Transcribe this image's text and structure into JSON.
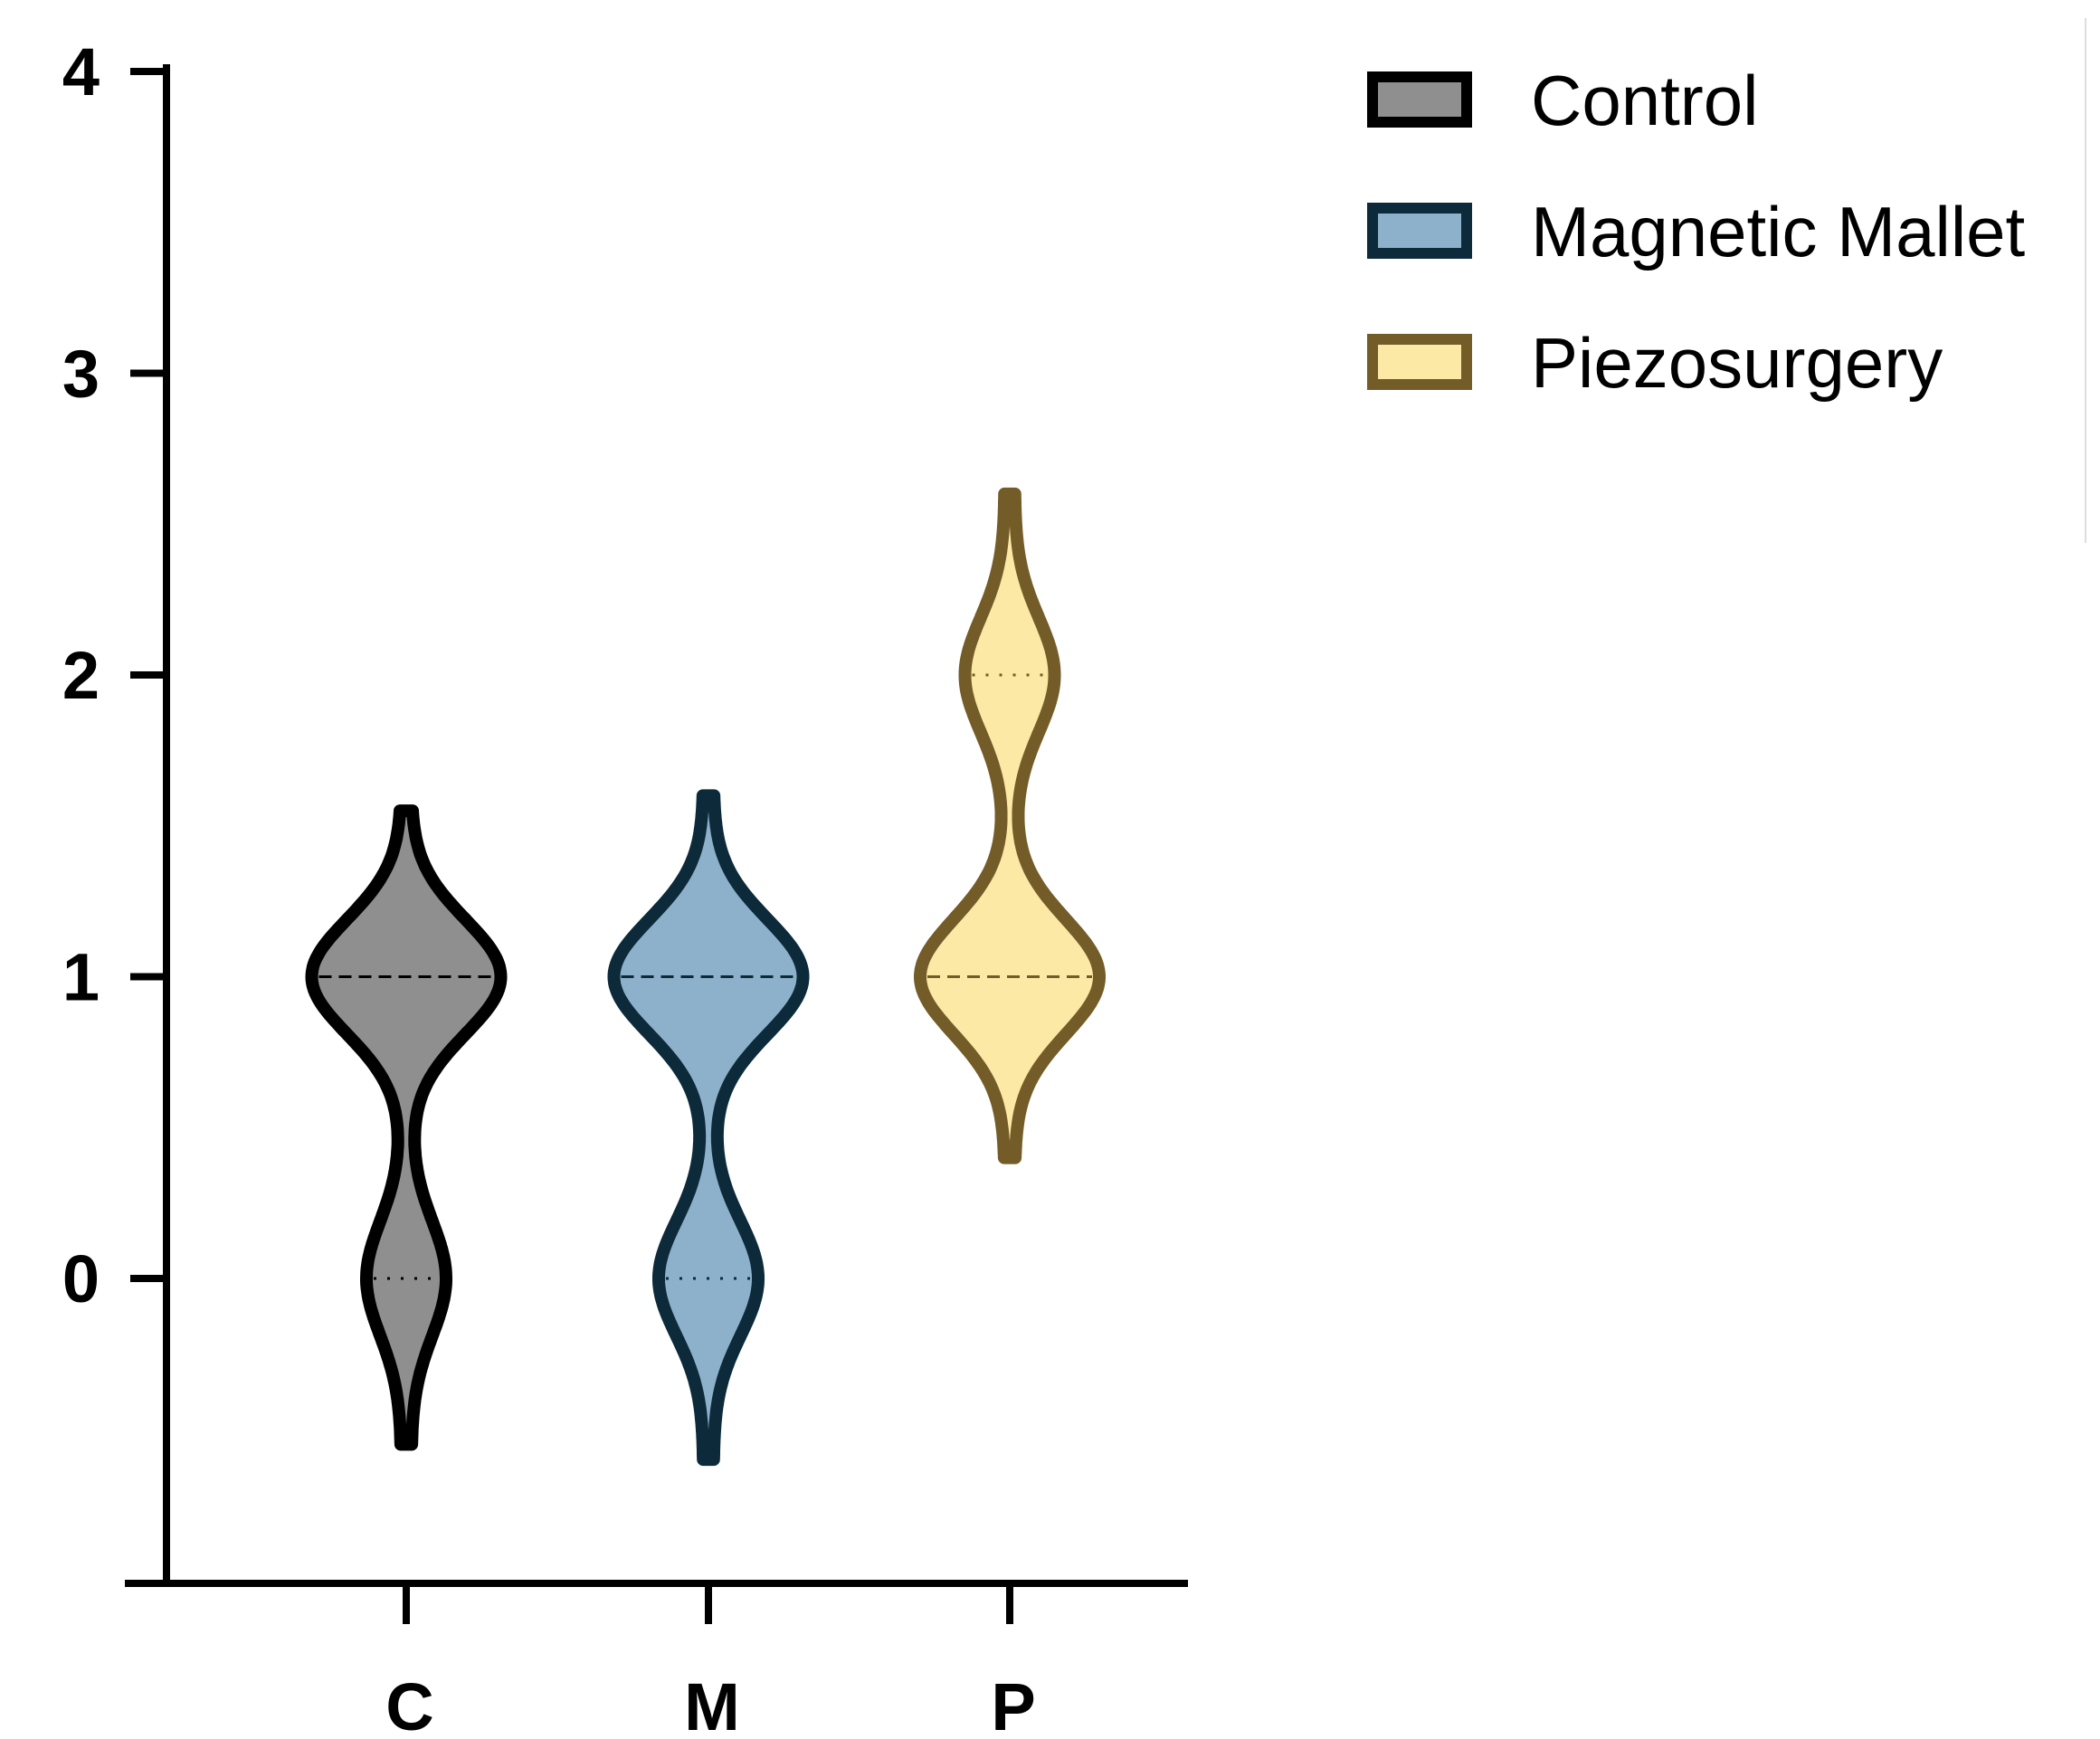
{
  "chart_data": {
    "type": "violin",
    "title": "",
    "xlabel": "",
    "ylabel": "",
    "ylim": [
      -1,
      4
    ],
    "yticks": [
      0,
      1,
      2,
      3,
      4
    ],
    "y_tick_labels": [
      "0",
      "1",
      "2",
      "3",
      "4"
    ],
    "grid": false,
    "legend": "top-right",
    "categories": [
      "C",
      "M",
      "P"
    ],
    "series": [
      {
        "name": "Control",
        "category": "C",
        "range": [
          -0.55,
          1.55
        ],
        "modes": [
          {
            "y": 1,
            "width": 0.9
          },
          {
            "y": 0,
            "width": 0.35
          }
        ],
        "median": 1,
        "quartiles": [
          0,
          1
        ],
        "fill": "#8f8f8f",
        "stroke": "#000000"
      },
      {
        "name": "Magnetic Mallet",
        "category": "M",
        "range": [
          -0.6,
          1.6
        ],
        "modes": [
          {
            "y": 1,
            "width": 0.9
          },
          {
            "y": 0,
            "width": 0.45
          }
        ],
        "median": 1,
        "quartiles": [
          0,
          1
        ],
        "fill": "#8eb1cb",
        "stroke": "#0c2a3a"
      },
      {
        "name": "Piezosurgery",
        "category": "P",
        "range": [
          0.4,
          2.6
        ],
        "modes": [
          {
            "y": 1,
            "width": 0.85
          },
          {
            "y": 2,
            "width": 0.4
          }
        ],
        "median": 1,
        "quartiles": [
          1,
          2
        ],
        "fill": "#fce9a6",
        "stroke": "#735c28"
      }
    ]
  }
}
